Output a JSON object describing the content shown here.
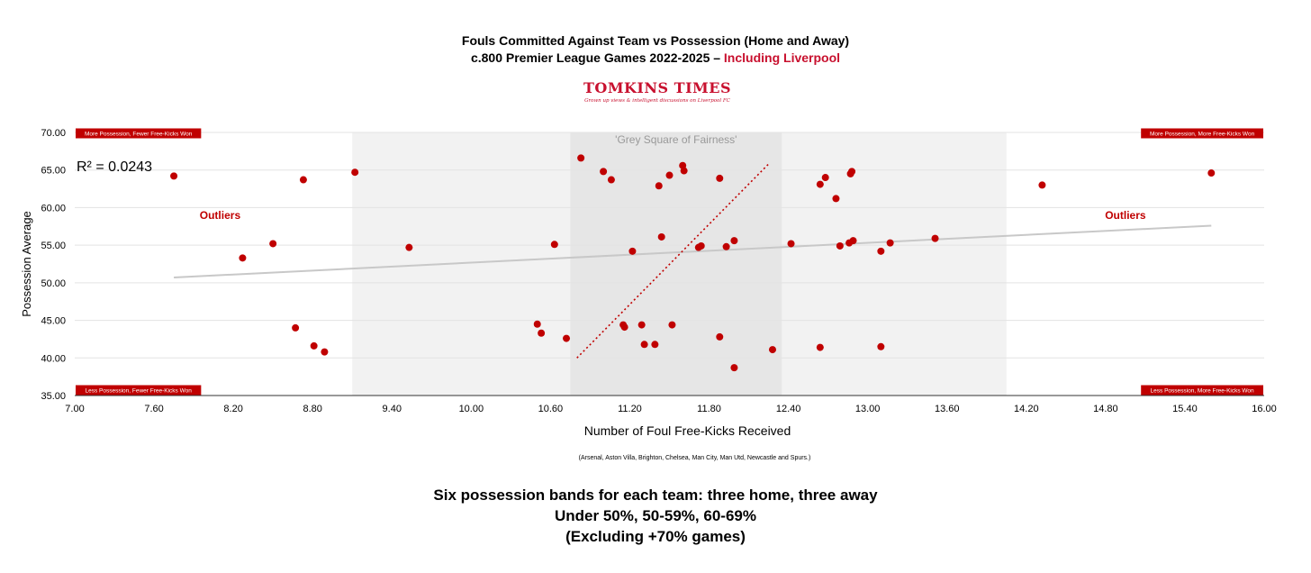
{
  "title": {
    "line1": "Fouls Committed Against Team vs Possession (Home and Away)",
    "line2_prefix": "c.800 Premier League Games 2022-2025 – ",
    "line2_accent": "Including Liverpool"
  },
  "logo": {
    "name": "TOMKINS TIMES",
    "tagline": "Grown up views & intelligent discussions on Liverpool FC"
  },
  "footer": {
    "line1": "Six possession bands for each team: three home, three away",
    "line2": "Under 50%, 50-59%, 60-69%",
    "line3": "(Excluding +70% games)"
  },
  "colors": {
    "accent": "#c8102e",
    "points": "#c00000",
    "trendline": "#c8c8c8",
    "band_outer": "#f2f2f2",
    "band_inner": "#e6e6e6"
  },
  "chart_data": {
    "type": "scatter",
    "xlabel": "Number of Foul Free-Kicks Received",
    "ylabel": "Possession Average",
    "note": "(Arsenal, Aston Villa, Brighton, Chelsea, Man City, Man Utd, Newcastle and Spurs.)",
    "xlim": [
      7.0,
      16.0
    ],
    "ylim": [
      35.0,
      70.0
    ],
    "x_ticks": [
      "7.00",
      "7.60",
      "8.20",
      "8.80",
      "9.40",
      "10.00",
      "10.60",
      "11.20",
      "11.80",
      "12.40",
      "13.00",
      "13.60",
      "14.20",
      "14.80",
      "15.40",
      "16.00"
    ],
    "y_ticks": [
      "35.00",
      "40.00",
      "45.00",
      "50.00",
      "55.00",
      "60.00",
      "65.00",
      "70.00"
    ],
    "grid": true,
    "r_squared": "R² = 0.0243",
    "trendline": {
      "x": [
        7.75,
        15.6
      ],
      "y": [
        50.7,
        57.6
      ]
    },
    "diagonal": {
      "x": [
        10.8,
        12.25
      ],
      "y": [
        40.0,
        65.8
      ]
    },
    "bands": [
      {
        "label": "",
        "x": [
          9.1,
          14.05
        ]
      },
      {
        "label": "'Grey Square of Fairness'",
        "x": [
          10.75,
          12.35
        ]
      }
    ],
    "corner_labels": {
      "top_left": "More Possession, Fewer Free-Kicks Won",
      "top_right": "More Possession, More Free-Kicks Won",
      "bottom_left": "Less Possession, Fewer Free-Kicks Won",
      "bottom_right": "Less Possession, More Free-Kicks Won"
    },
    "annotations": [
      {
        "text": "Outliers",
        "x": 8.1,
        "y": 59.0
      },
      {
        "text": "Outliers",
        "x": 14.95,
        "y": 59.0
      }
    ],
    "points": [
      {
        "x": 7.75,
        "y": 64.2
      },
      {
        "x": 8.27,
        "y": 53.3
      },
      {
        "x": 8.5,
        "y": 55.2
      },
      {
        "x": 8.73,
        "y": 63.7
      },
      {
        "x": 8.67,
        "y": 44.0
      },
      {
        "x": 8.81,
        "y": 41.6
      },
      {
        "x": 8.89,
        "y": 40.8
      },
      {
        "x": 9.12,
        "y": 64.7
      },
      {
        "x": 9.53,
        "y": 54.7
      },
      {
        "x": 10.5,
        "y": 44.5
      },
      {
        "x": 10.53,
        "y": 43.3
      },
      {
        "x": 10.63,
        "y": 55.1
      },
      {
        "x": 10.72,
        "y": 42.6
      },
      {
        "x": 10.83,
        "y": 66.6
      },
      {
        "x": 11.0,
        "y": 64.8
      },
      {
        "x": 11.06,
        "y": 63.7
      },
      {
        "x": 11.15,
        "y": 44.4
      },
      {
        "x": 11.16,
        "y": 44.1
      },
      {
        "x": 11.22,
        "y": 54.2
      },
      {
        "x": 11.29,
        "y": 44.4
      },
      {
        "x": 11.31,
        "y": 41.8
      },
      {
        "x": 11.39,
        "y": 41.8
      },
      {
        "x": 11.42,
        "y": 62.9
      },
      {
        "x": 11.44,
        "y": 56.1
      },
      {
        "x": 11.5,
        "y": 64.3
      },
      {
        "x": 11.52,
        "y": 44.4
      },
      {
        "x": 11.6,
        "y": 65.6
      },
      {
        "x": 11.61,
        "y": 64.9
      },
      {
        "x": 11.72,
        "y": 54.7
      },
      {
        "x": 11.74,
        "y": 54.9
      },
      {
        "x": 11.88,
        "y": 63.9
      },
      {
        "x": 11.88,
        "y": 42.8
      },
      {
        "x": 11.93,
        "y": 54.8
      },
      {
        "x": 11.99,
        "y": 55.6
      },
      {
        "x": 11.99,
        "y": 38.7
      },
      {
        "x": 12.28,
        "y": 41.1
      },
      {
        "x": 12.42,
        "y": 55.2
      },
      {
        "x": 12.64,
        "y": 63.1
      },
      {
        "x": 12.64,
        "y": 41.4
      },
      {
        "x": 12.68,
        "y": 64.0
      },
      {
        "x": 12.76,
        "y": 61.2
      },
      {
        "x": 12.79,
        "y": 54.9
      },
      {
        "x": 12.86,
        "y": 55.3
      },
      {
        "x": 12.87,
        "y": 64.5
      },
      {
        "x": 12.88,
        "y": 64.8
      },
      {
        "x": 12.89,
        "y": 55.6
      },
      {
        "x": 13.1,
        "y": 54.2
      },
      {
        "x": 13.1,
        "y": 41.5
      },
      {
        "x": 13.17,
        "y": 55.3
      },
      {
        "x": 13.51,
        "y": 55.9
      },
      {
        "x": 14.32,
        "y": 63.0
      },
      {
        "x": 15.6,
        "y": 64.6
      }
    ]
  }
}
